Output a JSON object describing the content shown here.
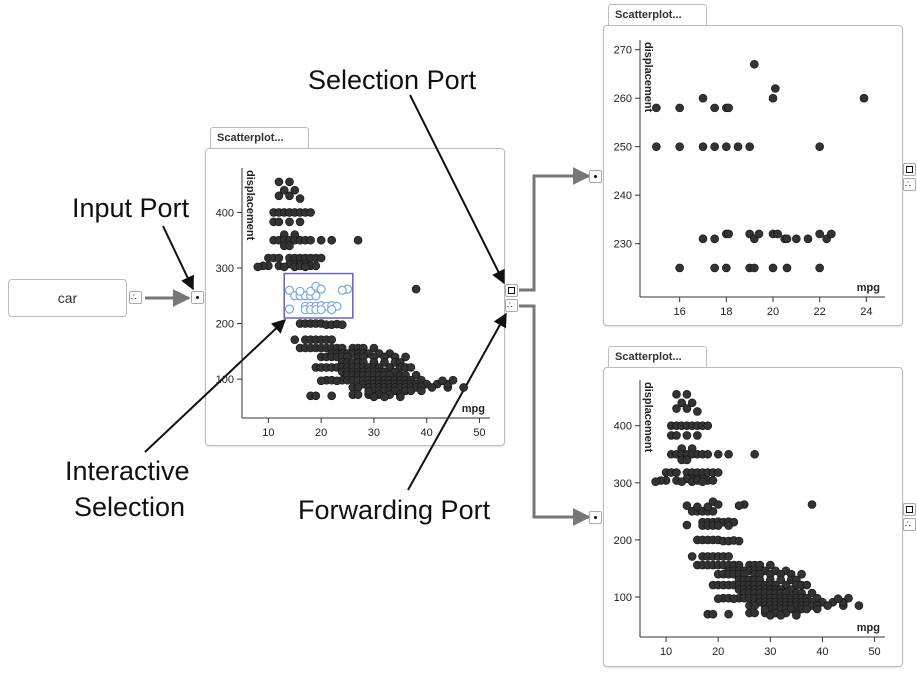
{
  "source_node": {
    "label": "car"
  },
  "callouts": {
    "input_port": "Input Port",
    "selection_port": "Selection Port",
    "interactive_selection": [
      "Interactive",
      "Selection"
    ],
    "forwarding_port": "Forwarding Port"
  },
  "panels": [
    {
      "tab": "Scatterplot..."
    },
    {
      "tab": "Scatterplot..."
    },
    {
      "tab": "Scatterplot..."
    }
  ],
  "colors": {
    "point": "#333333",
    "selected_point": "#7ba7d9",
    "brush": "#6b5fc7",
    "link": "#777777"
  },
  "chart_data": [
    {
      "type": "scatter",
      "xlabel": "mpg",
      "ylabel": "displacement",
      "xlim": [
        5,
        52
      ],
      "ylim": [
        30,
        480
      ],
      "xticks": [
        10,
        20,
        30,
        40,
        50
      ],
      "yticks": [
        100,
        200,
        300,
        400
      ],
      "brush": {
        "x": [
          13,
          26
        ],
        "y": [
          210,
          290
        ]
      },
      "points": [
        [
          12,
          455
        ],
        [
          14,
          455
        ],
        [
          13,
          440
        ],
        [
          15,
          440
        ],
        [
          12,
          430
        ],
        [
          14,
          430
        ],
        [
          16,
          425
        ],
        [
          11,
          400
        ],
        [
          12,
          400
        ],
        [
          13,
          400
        ],
        [
          14,
          400
        ],
        [
          15,
          400
        ],
        [
          16,
          400
        ],
        [
          17,
          400
        ],
        [
          18,
          400
        ],
        [
          11,
          383
        ],
        [
          12,
          383
        ],
        [
          14,
          383
        ],
        [
          16,
          383
        ],
        [
          13,
          360
        ],
        [
          15,
          360
        ],
        [
          11,
          350
        ],
        [
          12,
          350
        ],
        [
          13,
          350
        ],
        [
          14,
          350
        ],
        [
          15,
          350
        ],
        [
          16,
          350
        ],
        [
          17,
          350
        ],
        [
          18,
          350
        ],
        [
          20,
          350
        ],
        [
          22,
          350
        ],
        [
          27,
          350
        ],
        [
          13,
          340
        ],
        [
          14,
          340
        ],
        [
          10,
          318
        ],
        [
          11,
          318
        ],
        [
          12,
          318
        ],
        [
          14,
          318
        ],
        [
          15,
          318
        ],
        [
          16,
          318
        ],
        [
          17,
          318
        ],
        [
          18,
          318
        ],
        [
          19,
          318
        ],
        [
          20,
          318
        ],
        [
          15,
          307
        ],
        [
          16,
          307
        ],
        [
          17,
          307
        ],
        [
          14,
          307
        ],
        [
          10,
          304
        ],
        [
          12,
          304
        ],
        [
          15,
          302
        ],
        [
          16,
          304
        ],
        [
          18,
          304
        ],
        [
          19,
          304
        ],
        [
          13,
          302
        ],
        [
          17,
          302
        ],
        [
          9,
          304
        ],
        [
          8,
          302
        ],
        [
          14,
          260
        ],
        [
          15,
          250
        ],
        [
          16,
          250
        ],
        [
          17,
          250
        ],
        [
          18,
          250
        ],
        [
          19,
          250
        ],
        [
          16,
          258
        ],
        [
          18,
          258
        ],
        [
          17,
          231
        ],
        [
          18,
          231
        ],
        [
          19,
          231
        ],
        [
          20,
          232
        ],
        [
          21,
          231
        ],
        [
          22,
          232
        ],
        [
          23,
          231
        ],
        [
          25,
          262
        ],
        [
          24,
          260
        ],
        [
          14,
          226
        ],
        [
          17,
          225
        ],
        [
          18,
          225
        ],
        [
          19,
          225
        ],
        [
          20,
          225
        ],
        [
          22,
          225
        ],
        [
          19,
          267
        ],
        [
          20,
          262
        ],
        [
          38,
          262
        ],
        [
          16,
          200
        ],
        [
          17,
          200
        ],
        [
          18,
          200
        ],
        [
          19,
          200
        ],
        [
          20,
          200
        ],
        [
          21,
          198
        ],
        [
          22,
          198
        ],
        [
          23,
          199
        ],
        [
          24,
          198
        ],
        [
          15,
          171
        ],
        [
          17,
          171
        ],
        [
          18,
          171
        ],
        [
          19,
          171
        ],
        [
          20,
          171
        ],
        [
          21,
          171
        ],
        [
          22,
          171
        ],
        [
          16,
          156
        ],
        [
          17,
          156
        ],
        [
          18,
          156
        ],
        [
          19,
          156
        ],
        [
          20,
          156
        ],
        [
          21,
          156
        ],
        [
          22,
          156
        ],
        [
          23,
          156
        ],
        [
          24,
          156
        ],
        [
          26,
          156
        ],
        [
          27,
          156
        ],
        [
          28,
          156
        ],
        [
          30,
          156
        ],
        [
          22,
          146
        ],
        [
          23,
          146
        ],
        [
          24,
          146
        ],
        [
          25,
          146
        ],
        [
          26,
          146
        ],
        [
          27,
          146
        ],
        [
          28,
          146
        ],
        [
          29,
          146
        ],
        [
          31,
          146
        ],
        [
          33,
          146
        ],
        [
          20,
          140
        ],
        [
          21,
          140
        ],
        [
          22,
          140
        ],
        [
          23,
          140
        ],
        [
          24,
          140
        ],
        [
          25,
          140
        ],
        [
          27,
          140
        ],
        [
          28,
          140
        ],
        [
          30,
          140
        ],
        [
          32,
          140
        ],
        [
          34,
          140
        ],
        [
          36,
          140
        ],
        [
          24,
          130
        ],
        [
          25,
          130
        ],
        [
          26,
          130
        ],
        [
          27,
          130
        ],
        [
          28,
          130
        ],
        [
          30,
          130
        ],
        [
          32,
          130
        ],
        [
          34,
          130
        ],
        [
          35,
          130
        ],
        [
          19,
          121
        ],
        [
          20,
          121
        ],
        [
          21,
          121
        ],
        [
          22,
          121
        ],
        [
          23,
          121
        ],
        [
          24,
          121
        ],
        [
          25,
          121
        ],
        [
          26,
          121
        ],
        [
          27,
          121
        ],
        [
          28,
          121
        ],
        [
          29,
          121
        ],
        [
          30,
          121
        ],
        [
          31,
          121
        ],
        [
          33,
          121
        ],
        [
          35,
          121
        ],
        [
          36,
          121
        ],
        [
          37,
          121
        ],
        [
          24,
          113
        ],
        [
          25,
          113
        ],
        [
          26,
          113
        ],
        [
          27,
          113
        ],
        [
          28,
          113
        ],
        [
          29,
          113
        ],
        [
          30,
          113
        ],
        [
          31,
          113
        ],
        [
          32,
          113
        ],
        [
          34,
          113
        ],
        [
          25,
          107
        ],
        [
          26,
          107
        ],
        [
          27,
          107
        ],
        [
          28,
          107
        ],
        [
          29,
          107
        ],
        [
          30,
          107
        ],
        [
          31,
          107
        ],
        [
          32,
          107
        ],
        [
          33,
          107
        ],
        [
          35,
          107
        ],
        [
          36,
          107
        ],
        [
          38,
          107
        ],
        [
          21,
          98
        ],
        [
          22,
          98
        ],
        [
          24,
          98
        ],
        [
          25,
          98
        ],
        [
          26,
          98
        ],
        [
          27,
          98
        ],
        [
          28,
          98
        ],
        [
          29,
          98
        ],
        [
          30,
          98
        ],
        [
          31,
          98
        ],
        [
          32,
          98
        ],
        [
          33,
          98
        ],
        [
          34,
          98
        ],
        [
          35,
          98
        ],
        [
          36,
          98
        ],
        [
          37,
          98
        ],
        [
          39,
          98
        ],
        [
          28,
          91
        ],
        [
          29,
          91
        ],
        [
          30,
          91
        ],
        [
          31,
          91
        ],
        [
          32,
          91
        ],
        [
          33,
          91
        ],
        [
          34,
          91
        ],
        [
          35,
          91
        ],
        [
          36,
          91
        ],
        [
          37,
          91
        ],
        [
          38,
          91
        ],
        [
          40,
          91
        ],
        [
          42,
          91
        ],
        [
          26,
          85
        ],
        [
          27,
          85
        ],
        [
          29,
          85
        ],
        [
          30,
          85
        ],
        [
          31,
          85
        ],
        [
          32,
          85
        ],
        [
          33,
          85
        ],
        [
          34,
          85
        ],
        [
          35,
          85
        ],
        [
          36,
          85
        ],
        [
          37,
          85
        ],
        [
          38,
          85
        ],
        [
          39,
          85
        ],
        [
          41,
          85
        ],
        [
          44,
          85
        ],
        [
          47,
          85
        ],
        [
          30,
          79
        ],
        [
          31,
          79
        ],
        [
          32,
          79
        ],
        [
          33,
          79
        ],
        [
          34,
          79
        ],
        [
          36,
          79
        ],
        [
          37,
          79
        ],
        [
          39,
          79
        ],
        [
          26,
          72
        ],
        [
          27,
          72
        ],
        [
          29,
          72
        ],
        [
          31,
          72
        ],
        [
          33,
          72
        ],
        [
          35,
          72
        ],
        [
          18,
          70
        ],
        [
          19,
          70
        ],
        [
          22,
          70
        ],
        [
          30,
          68
        ],
        [
          32,
          68
        ],
        [
          35,
          68
        ],
        [
          44,
          91
        ],
        [
          45,
          98
        ],
        [
          43,
          97
        ],
        [
          29,
          78
        ],
        [
          23,
          97
        ],
        [
          20,
          97
        ]
      ]
    },
    {
      "type": "scatter",
      "xlabel": "mpg",
      "ylabel": "displacement",
      "xlim": [
        14.3,
        24.8
      ],
      "ylim": [
        219,
        272
      ],
      "xticks": [
        16,
        18,
        20,
        22,
        24
      ],
      "yticks": [
        230,
        240,
        250,
        260,
        270
      ],
      "points": [
        [
          15,
          258
        ],
        [
          15,
          250
        ],
        [
          16,
          258
        ],
        [
          16,
          250
        ],
        [
          16,
          225
        ],
        [
          17,
          260
        ],
        [
          17.5,
          258
        ],
        [
          18,
          258
        ],
        [
          18.1,
          258
        ],
        [
          17,
          250
        ],
        [
          17.5,
          250
        ],
        [
          18,
          250
        ],
        [
          18.5,
          250
        ],
        [
          19,
          250
        ],
        [
          19.2,
          267
        ],
        [
          20,
          260
        ],
        [
          20.1,
          262
        ],
        [
          23.9,
          260
        ],
        [
          22,
          250
        ],
        [
          17,
          231
        ],
        [
          17.5,
          231
        ],
        [
          18,
          232
        ],
        [
          18.1,
          232
        ],
        [
          19,
          232
        ],
        [
          19.2,
          231
        ],
        [
          19.4,
          232
        ],
        [
          20,
          232
        ],
        [
          20.2,
          232
        ],
        [
          20.5,
          231
        ],
        [
          20.6,
          231
        ],
        [
          21,
          231
        ],
        [
          21.5,
          231
        ],
        [
          22,
          232
        ],
        [
          22.3,
          231
        ],
        [
          22.5,
          232
        ],
        [
          17.5,
          225
        ],
        [
          18,
          225
        ],
        [
          19,
          225
        ],
        [
          19.2,
          225
        ],
        [
          20,
          225
        ],
        [
          20.6,
          225
        ],
        [
          22,
          225
        ]
      ]
    },
    {
      "type": "scatter",
      "xlabel": "mpg",
      "ylabel": "displacement",
      "xlim": [
        5,
        52
      ],
      "ylim": [
        30,
        480
      ],
      "xticks": [
        10,
        20,
        30,
        40,
        50
      ],
      "yticks": [
        100,
        200,
        300,
        400
      ],
      "points": "same_as_panel_1"
    }
  ]
}
